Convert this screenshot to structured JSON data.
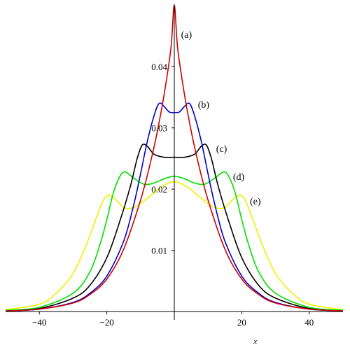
{
  "chart_data": {
    "type": "line",
    "xlabel": "x",
    "ylabel": "",
    "xlim": [
      -50,
      50
    ],
    "ylim": [
      -0.0009,
      0.0502
    ],
    "grid": false,
    "x_ticks": [
      {
        "value": -40,
        "label": "−40"
      },
      {
        "value": -20,
        "label": "−20"
      },
      {
        "value": 0,
        "label": ""
      },
      {
        "value": 20,
        "label": "20"
      },
      {
        "value": 40,
        "label": "40"
      }
    ],
    "y_ticks": [
      {
        "value": 0.01,
        "label": "0.01"
      },
      {
        "value": 0.02,
        "label": "0.02"
      },
      {
        "value": 0.03,
        "label": "0.03"
      },
      {
        "value": 0.04,
        "label": "0.04"
      }
    ],
    "series": [
      {
        "name": "(a)",
        "color": "#d00000",
        "label_at": {
          "x": 2,
          "y": 0.0447
        },
        "points": [
          [
            -50,
            0.0001
          ],
          [
            -40,
            0.0004
          ],
          [
            -30,
            0.0014
          ],
          [
            -25,
            0.0028
          ],
          [
            -20,
            0.0053
          ],
          [
            -15,
            0.0102
          ],
          [
            -10,
            0.0182
          ],
          [
            -7,
            0.0245
          ],
          [
            -5,
            0.0295
          ],
          [
            -3,
            0.0355
          ],
          [
            -1,
            0.043
          ],
          [
            0,
            0.05
          ],
          [
            1,
            0.043
          ],
          [
            3,
            0.0355
          ],
          [
            5,
            0.0295
          ],
          [
            7,
            0.0245
          ],
          [
            10,
            0.0182
          ],
          [
            15,
            0.0102
          ],
          [
            20,
            0.0053
          ],
          [
            25,
            0.0028
          ],
          [
            30,
            0.0014
          ],
          [
            40,
            0.0004
          ],
          [
            50,
            0.0001
          ]
        ]
      },
      {
        "name": "(b)",
        "color": "#0000cc",
        "label_at": {
          "x": 7,
          "y": 0.0333
        },
        "points": [
          [
            -50,
            0.0001
          ],
          [
            -40,
            0.0004
          ],
          [
            -30,
            0.0015
          ],
          [
            -25,
            0.003
          ],
          [
            -20,
            0.0058
          ],
          [
            -15,
            0.0115
          ],
          [
            -12,
            0.0175
          ],
          [
            -10,
            0.0225
          ],
          [
            -8,
            0.0278
          ],
          [
            -6,
            0.032
          ],
          [
            -4.5,
            0.034
          ],
          [
            -3,
            0.0335
          ],
          [
            -1.5,
            0.0326
          ],
          [
            0,
            0.0325
          ],
          [
            1.5,
            0.0326
          ],
          [
            3,
            0.0335
          ],
          [
            4.5,
            0.034
          ],
          [
            6,
            0.032
          ],
          [
            8,
            0.0278
          ],
          [
            10,
            0.0225
          ],
          [
            12,
            0.0175
          ],
          [
            15,
            0.0115
          ],
          [
            20,
            0.0058
          ],
          [
            25,
            0.003
          ],
          [
            30,
            0.0015
          ],
          [
            40,
            0.0004
          ],
          [
            50,
            0.0001
          ]
        ]
      },
      {
        "name": "(c)",
        "color": "#000000",
        "label_at": {
          "x": 12.4,
          "y": 0.0261
        },
        "points": [
          [
            -50,
            0.0001
          ],
          [
            -40,
            0.0005
          ],
          [
            -30,
            0.0022
          ],
          [
            -25,
            0.0043
          ],
          [
            -20,
            0.0088
          ],
          [
            -16,
            0.015
          ],
          [
            -13,
            0.0205
          ],
          [
            -11,
            0.025
          ],
          [
            -9.5,
            0.0272
          ],
          [
            -8,
            0.027
          ],
          [
            -6,
            0.0257
          ],
          [
            -3,
            0.0252
          ],
          [
            0,
            0.0252
          ],
          [
            3,
            0.0252
          ],
          [
            6,
            0.0257
          ],
          [
            8,
            0.027
          ],
          [
            9.5,
            0.0272
          ],
          [
            11,
            0.025
          ],
          [
            13,
            0.0205
          ],
          [
            16,
            0.015
          ],
          [
            20,
            0.0088
          ],
          [
            25,
            0.0043
          ],
          [
            30,
            0.0022
          ],
          [
            40,
            0.0005
          ],
          [
            50,
            0.0001
          ]
        ]
      },
      {
        "name": "(d)",
        "color": "#00e000",
        "label_at": {
          "x": 17.4,
          "y": 0.0215
        },
        "points": [
          [
            -50,
            0.0002
          ],
          [
            -40,
            0.0007
          ],
          [
            -30,
            0.003
          ],
          [
            -25,
            0.0065
          ],
          [
            -22,
            0.011
          ],
          [
            -20,
            0.015
          ],
          [
            -18,
            0.0195
          ],
          [
            -16,
            0.0222
          ],
          [
            -14.5,
            0.0228
          ],
          [
            -12,
            0.0218
          ],
          [
            -9,
            0.0208
          ],
          [
            -6,
            0.021
          ],
          [
            -3,
            0.0217
          ],
          [
            0,
            0.0221
          ],
          [
            3,
            0.0217
          ],
          [
            6,
            0.021
          ],
          [
            9,
            0.0208
          ],
          [
            12,
            0.0218
          ],
          [
            14.5,
            0.0228
          ],
          [
            16,
            0.0222
          ],
          [
            18,
            0.0195
          ],
          [
            20,
            0.015
          ],
          [
            22,
            0.011
          ],
          [
            25,
            0.0065
          ],
          [
            30,
            0.003
          ],
          [
            40,
            0.0007
          ],
          [
            50,
            0.0002
          ]
        ]
      },
      {
        "name": "(e)",
        "color": "#f0f000",
        "label_at": {
          "x": 22.4,
          "y": 0.0175
        },
        "points": [
          [
            -50,
            0.0003
          ],
          [
            -40,
            0.0012
          ],
          [
            -35,
            0.003
          ],
          [
            -30,
            0.0062
          ],
          [
            -26,
            0.011
          ],
          [
            -23,
            0.0155
          ],
          [
            -21,
            0.0182
          ],
          [
            -19.5,
            0.019
          ],
          [
            -17.5,
            0.0184
          ],
          [
            -15,
            0.017
          ],
          [
            -12,
            0.017
          ],
          [
            -8,
            0.0185
          ],
          [
            -4,
            0.0203
          ],
          [
            0,
            0.0212
          ],
          [
            4,
            0.0203
          ],
          [
            8,
            0.0185
          ],
          [
            12,
            0.017
          ],
          [
            15,
            0.017
          ],
          [
            17.5,
            0.0184
          ],
          [
            19.5,
            0.019
          ],
          [
            21,
            0.0182
          ],
          [
            23,
            0.0155
          ],
          [
            26,
            0.011
          ],
          [
            30,
            0.0062
          ],
          [
            35,
            0.003
          ],
          [
            40,
            0.0012
          ],
          [
            50,
            0.0003
          ]
        ]
      }
    ]
  }
}
